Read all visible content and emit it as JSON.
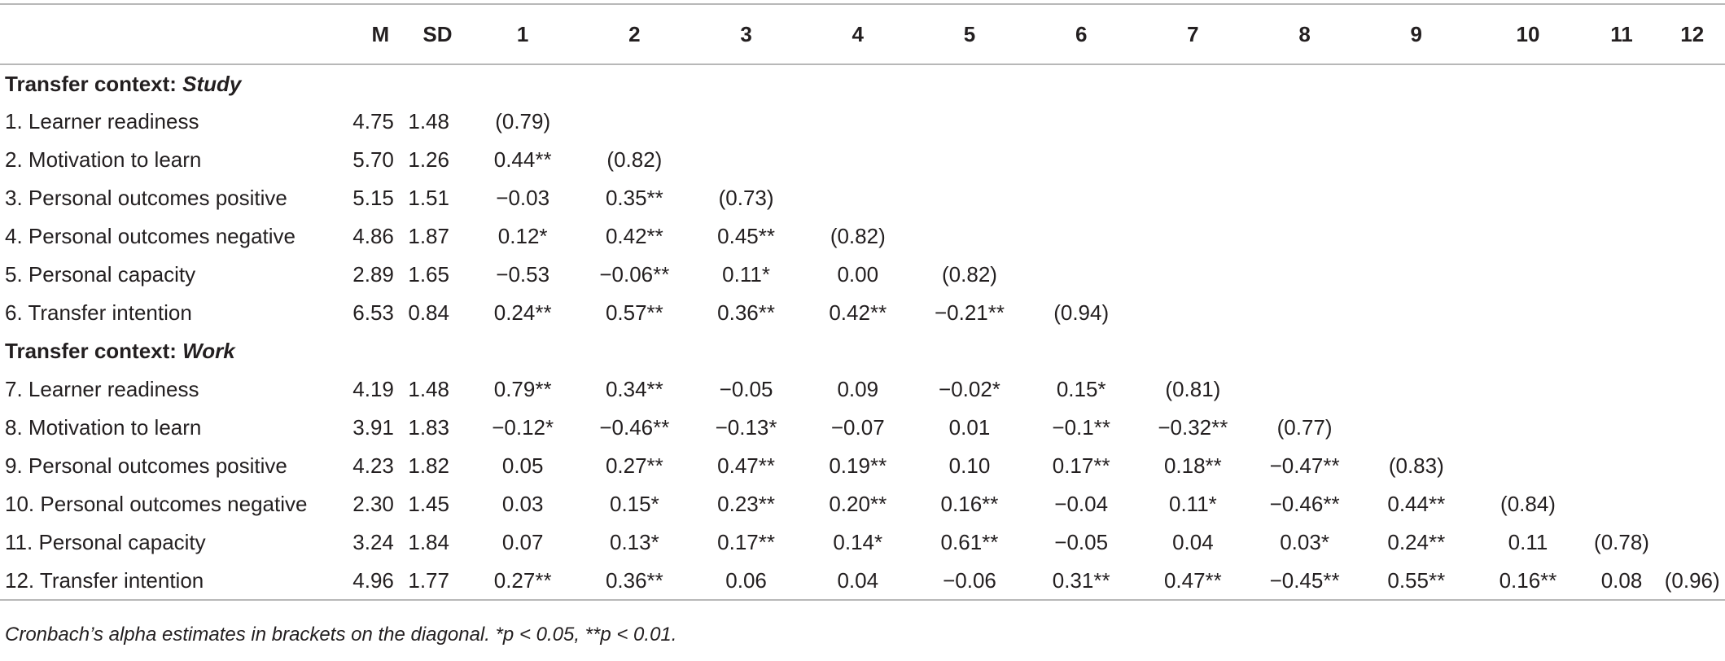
{
  "table": {
    "headers": [
      "",
      "M",
      "SD",
      "1",
      "2",
      "3",
      "4",
      "5",
      "6",
      "7",
      "8",
      "9",
      "10",
      "11",
      "12"
    ],
    "sections": [
      {
        "title_prefix": "Transfer context: ",
        "title_context": "Study",
        "rows": [
          {
            "label": "1. Learner readiness",
            "m": "4.75",
            "sd": "1.48",
            "cells": [
              "(0.79)",
              "",
              "",
              "",
              "",
              "",
              "",
              "",
              "",
              "",
              "",
              ""
            ]
          },
          {
            "label": "2. Motivation to learn",
            "m": "5.70",
            "sd": "1.26",
            "cells": [
              "0.44**",
              "(0.82)",
              "",
              "",
              "",
              "",
              "",
              "",
              "",
              "",
              "",
              ""
            ]
          },
          {
            "label": "3. Personal outcomes positive",
            "m": "5.15",
            "sd": "1.51",
            "cells": [
              "−0.03",
              "0.35**",
              "(0.73)",
              "",
              "",
              "",
              "",
              "",
              "",
              "",
              "",
              ""
            ]
          },
          {
            "label": "4. Personal outcomes negative",
            "m": "4.86",
            "sd": "1.87",
            "cells": [
              "0.12*",
              "0.42**",
              "0.45**",
              "(0.82)",
              "",
              "",
              "",
              "",
              "",
              "",
              "",
              ""
            ]
          },
          {
            "label": "5. Personal capacity",
            "m": "2.89",
            "sd": "1.65",
            "cells": [
              "−0.53",
              "−0.06**",
              "0.11*",
              "0.00",
              "(0.82)",
              "",
              "",
              "",
              "",
              "",
              "",
              ""
            ]
          },
          {
            "label": "6. Transfer intention",
            "m": "6.53",
            "sd": "0.84",
            "cells": [
              "0.24**",
              "0.57**",
              "0.36**",
              "0.42**",
              "−0.21**",
              "(0.94)",
              "",
              "",
              "",
              "",
              "",
              ""
            ]
          }
        ]
      },
      {
        "title_prefix": "Transfer context: ",
        "title_context": "Work",
        "rows": [
          {
            "label": "7. Learner readiness",
            "m": "4.19",
            "sd": "1.48",
            "cells": [
              "0.79**",
              "0.34**",
              "−0.05",
              "0.09",
              "−0.02*",
              "0.15*",
              "(0.81)",
              "",
              "",
              "",
              "",
              ""
            ]
          },
          {
            "label": "8. Motivation to learn",
            "m": "3.91",
            "sd": "1.83",
            "cells": [
              "−0.12*",
              "−0.46**",
              "−0.13*",
              "−0.07",
              "0.01",
              "−0.1**",
              "−0.32**",
              "(0.77)",
              "",
              "",
              "",
              ""
            ]
          },
          {
            "label": "9. Personal outcomes positive",
            "m": "4.23",
            "sd": "1.82",
            "cells": [
              "0.05",
              "0.27**",
              "0.47**",
              "0.19**",
              "0.10",
              "0.17**",
              "0.18**",
              "−0.47**",
              "(0.83)",
              "",
              "",
              ""
            ]
          },
          {
            "label": "10. Personal outcomes negative",
            "m": "2.30",
            "sd": "1.45",
            "cells": [
              "0.03",
              "0.15*",
              "0.23**",
              "0.20**",
              "0.16**",
              "−0.04",
              "0.11*",
              "−0.46**",
              "0.44**",
              "(0.84)",
              "",
              ""
            ]
          },
          {
            "label": "11. Personal capacity",
            "m": "3.24",
            "sd": "1.84",
            "cells": [
              "0.07",
              "0.13*",
              "0.17**",
              "0.14*",
              "0.61**",
              "−0.05",
              "0.04",
              "0.03*",
              "0.24**",
              "0.11",
              "(0.78)",
              ""
            ]
          },
          {
            "label": "12. Transfer intention",
            "m": "4.96",
            "sd": "1.77",
            "cells": [
              "0.27**",
              "0.36**",
              "0.06",
              "0.04",
              "−0.06",
              "0.31**",
              "0.47**",
              "−0.45**",
              "0.55**",
              "0.16**",
              "0.08",
              "(0.96)"
            ]
          }
        ]
      }
    ],
    "note": "Cronbach’s alpha estimates in brackets on the diagonal. *p < 0.05, **p < 0.01."
  }
}
